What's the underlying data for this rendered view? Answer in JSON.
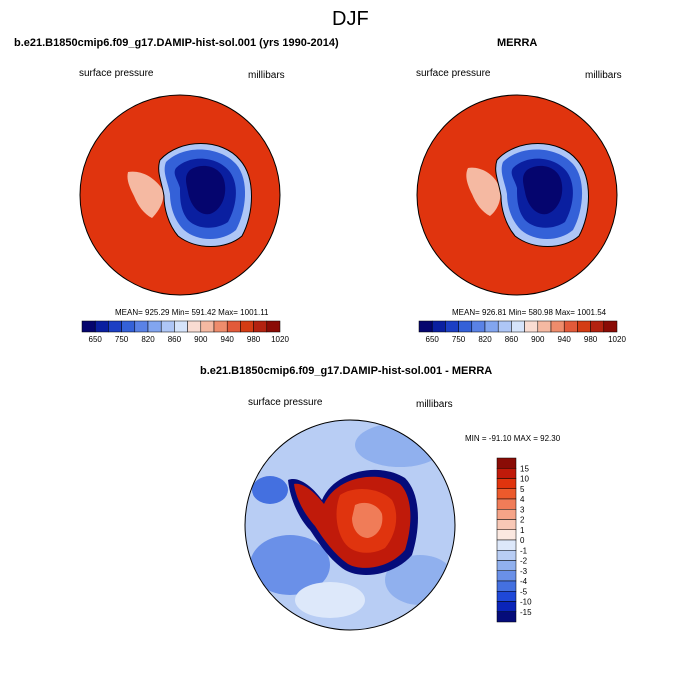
{
  "page": {
    "title": "DJF",
    "panel1_title": "b.e21.B1850cmip6.f09_g17.DAMIP-hist-sol.001 (yrs 1990-2014)",
    "panel2_title": "MERRA",
    "panel3_title": "b.e21.B1850cmip6.f09_g17.DAMIP-hist-sol.001 - MERRA"
  },
  "chart_data": [
    {
      "type": "heatmap",
      "projection": "south polar stereographic",
      "left_label": "surface pressure",
      "right_label": "millibars",
      "stats_text": "MEAN= 925.29  Min= 591.42  Max= 1001.11",
      "stats": {
        "mean": 925.29,
        "min": 591.42,
        "max": 1001.11
      },
      "colorbar_levels": [
        650,
        700,
        750,
        780,
        820,
        840,
        860,
        880,
        900,
        920,
        940,
        960,
        980,
        1000,
        1020
      ],
      "colorbar_tick_labels": [
        "650",
        "750",
        "820",
        "860",
        "900",
        "940",
        "980",
        "1020"
      ],
      "colorbar_colors": [
        "#05056e",
        "#0a1fa0",
        "#1c3fc4",
        "#3461d8",
        "#5a82e6",
        "#82a5ef",
        "#aec6f6",
        "#d6e4fb",
        "#f9dcd2",
        "#f5b9a2",
        "#ee8c6c",
        "#e25a3a",
        "#d43c14",
        "#b32210",
        "#8a0c06"
      ],
      "colorbar_placement": "bottom"
    },
    {
      "type": "heatmap",
      "projection": "south polar stereographic",
      "left_label": "surface pressure",
      "right_label": "millibars",
      "stats_text": "MEAN= 926.81  Min= 580.98  Max= 1001.54",
      "stats": {
        "mean": 926.81,
        "min": 580.98,
        "max": 1001.54
      },
      "colorbar_levels": [
        650,
        700,
        750,
        780,
        820,
        840,
        860,
        880,
        900,
        920,
        940,
        960,
        980,
        1000,
        1020
      ],
      "colorbar_tick_labels": [
        "650",
        "750",
        "820",
        "860",
        "900",
        "940",
        "980",
        "1020"
      ],
      "colorbar_colors": [
        "#05056e",
        "#0a1fa0",
        "#1c3fc4",
        "#3461d8",
        "#5a82e6",
        "#82a5ef",
        "#aec6f6",
        "#d6e4fb",
        "#f9dcd2",
        "#f5b9a2",
        "#ee8c6c",
        "#e25a3a",
        "#d43c14",
        "#b32210",
        "#8a0c06"
      ],
      "colorbar_placement": "bottom"
    },
    {
      "type": "heatmap",
      "projection": "south polar stereographic",
      "left_label": "surface pressure",
      "right_label": "millibars",
      "stats_text": "MIN = -91.10 MAX =  92.30",
      "stats": {
        "min": -91.1,
        "max": 92.3
      },
      "colorbar_tick_labels": [
        "15",
        "10",
        "5",
        "4",
        "3",
        "2",
        "1",
        "0",
        "-1",
        "-2",
        "-3",
        "-4",
        "-5",
        "-10",
        "-15"
      ],
      "colorbar_colors": [
        "#8a0c06",
        "#c01a0a",
        "#e0340e",
        "#ec5a2c",
        "#f07c58",
        "#f5a488",
        "#f8c8b6",
        "#fbe8e0",
        "#dde8fa",
        "#b8cdf4",
        "#90b0ee",
        "#6a90e8",
        "#4470e0",
        "#1f48d8",
        "#0a24b8",
        "#050c7a"
      ],
      "colorbar_placement": "right"
    }
  ]
}
